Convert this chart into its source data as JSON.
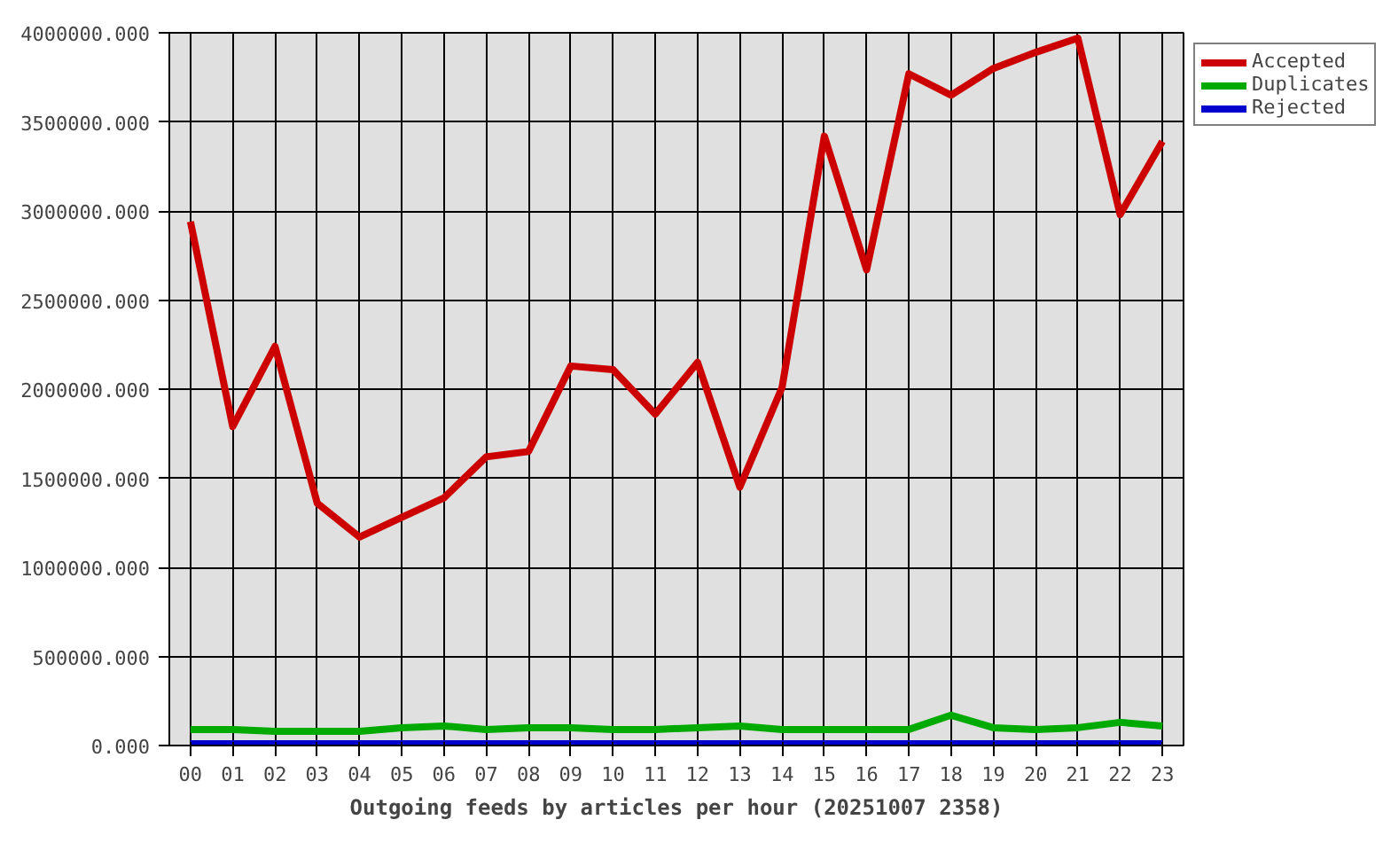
{
  "chart_data": {
    "type": "line",
    "xlabel": "Outgoing feeds by articles per hour (20251007 2358)",
    "categories": [
      "00",
      "01",
      "02",
      "03",
      "04",
      "05",
      "06",
      "07",
      "08",
      "09",
      "10",
      "11",
      "12",
      "13",
      "14",
      "15",
      "16",
      "17",
      "18",
      "19",
      "20",
      "21",
      "22",
      "23"
    ],
    "series": [
      {
        "name": "Accepted",
        "color": "#cc0000",
        "values": [
          2940000,
          1790000,
          2240000,
          1360000,
          1170000,
          1280000,
          1390000,
          1620000,
          1650000,
          2130000,
          2110000,
          1860000,
          2150000,
          1450000,
          2010000,
          3420000,
          2670000,
          3770000,
          3650000,
          3800000,
          3890000,
          3970000,
          2980000,
          3390000
        ]
      },
      {
        "name": "Duplicates",
        "color": "#00aa00",
        "values": [
          90000,
          90000,
          80000,
          80000,
          80000,
          100000,
          110000,
          90000,
          100000,
          100000,
          90000,
          90000,
          100000,
          110000,
          90000,
          90000,
          90000,
          90000,
          170000,
          100000,
          90000,
          100000,
          130000,
          110000
        ]
      },
      {
        "name": "Rejected",
        "color": "#0000cc",
        "values": [
          10000,
          10000,
          10000,
          10000,
          10000,
          10000,
          10000,
          10000,
          10000,
          10000,
          10000,
          10000,
          10000,
          10000,
          10000,
          10000,
          10000,
          10000,
          10000,
          10000,
          10000,
          10000,
          10000,
          10000
        ]
      }
    ],
    "ylim": [
      0,
      4000000
    ],
    "yticks": [
      {
        "value": 0,
        "label": "0.000"
      },
      {
        "value": 500000,
        "label": "500000.000"
      },
      {
        "value": 1000000,
        "label": "1000000.000"
      },
      {
        "value": 1500000,
        "label": "1500000.000"
      },
      {
        "value": 2000000,
        "label": "2000000.000"
      },
      {
        "value": 2500000,
        "label": "2500000.000"
      },
      {
        "value": 3000000,
        "label": "3000000.000"
      },
      {
        "value": 3500000,
        "label": "3500000.000"
      },
      {
        "value": 4000000,
        "label": "4000000.000"
      }
    ],
    "grid": true,
    "legend": "top right",
    "marker": "none",
    "line_style": "solid"
  }
}
